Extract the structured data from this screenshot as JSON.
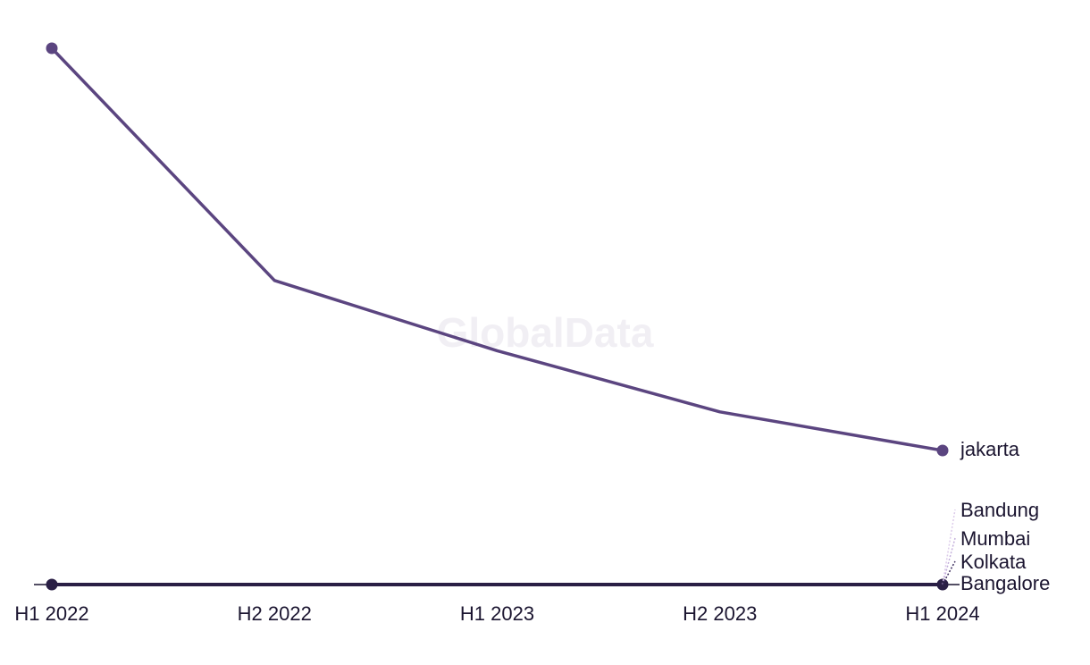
{
  "watermark": "GlobalData",
  "chart_data": {
    "type": "line",
    "categories": [
      "H1 2022",
      "H2 2022",
      "H1 2023",
      "H2 2023",
      "H1 2024"
    ],
    "ylim": [
      0,
      100
    ],
    "grid": false,
    "legend": "end-labels",
    "series": [
      {
        "name": "jakarta",
        "values": [
          100,
          56.7,
          43.6,
          32.2,
          25.0
        ],
        "color": "#5b4580",
        "width": 3.5,
        "dash": "",
        "markers": true
      },
      {
        "name": "Bandung",
        "values": [
          0,
          0,
          0,
          0,
          0
        ],
        "color": "#dccbea",
        "width": 2,
        "dash": "3,3",
        "markers": false
      },
      {
        "name": "Mumbai",
        "values": [
          0,
          0,
          0,
          0,
          0
        ],
        "color": "#c3aedb",
        "width": 2,
        "dash": "3,3",
        "markers": false
      },
      {
        "name": "Kolkata",
        "values": [
          0,
          0,
          0,
          0,
          0
        ],
        "color": "#3c2d5e",
        "width": 2,
        "dash": "3,3",
        "markers": false
      },
      {
        "name": "Bangalore",
        "values": [
          0,
          0,
          0,
          0,
          0
        ],
        "color": "#2a1f45",
        "width": 4,
        "dash": "",
        "markers": true
      }
    ]
  }
}
